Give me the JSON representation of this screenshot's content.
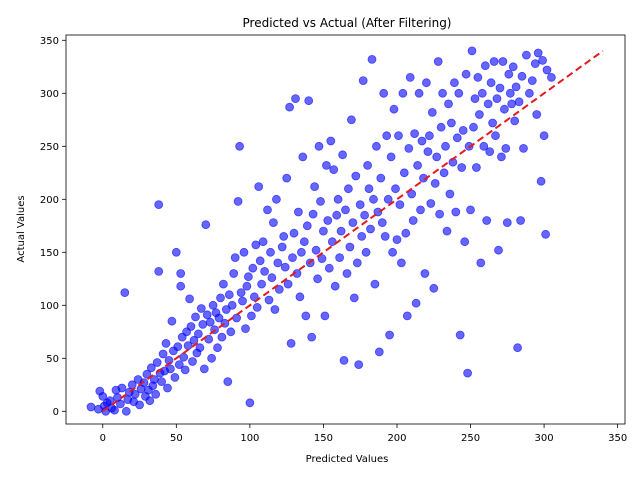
{
  "chart_data": {
    "type": "scatter",
    "title": "Predicted vs Actual (After Filtering)",
    "xlabel": "Predicted Values",
    "ylabel": "Actual Values",
    "xlim": [
      -25,
      355
    ],
    "ylim": [
      -12,
      355
    ],
    "xticks": [
      0,
      50,
      100,
      150,
      200,
      250,
      300,
      350
    ],
    "yticks": [
      0,
      50,
      100,
      150,
      200,
      250,
      300,
      350
    ],
    "grid": false,
    "legend": "none",
    "colors": {
      "points": "#0000ff",
      "reference_line": "#e41a1c"
    },
    "reference_line": {
      "style": "dashed",
      "from": [
        0,
        0
      ],
      "to": [
        340,
        340
      ]
    },
    "series": [
      {
        "points": [
          [
            -8,
            4
          ],
          [
            -3,
            2
          ],
          [
            -2,
            19
          ],
          [
            0,
            14
          ],
          [
            1,
            5
          ],
          [
            2,
            0
          ],
          [
            3,
            8
          ],
          [
            5,
            10
          ],
          [
            6,
            3
          ],
          [
            8,
            1
          ],
          [
            9,
            20
          ],
          [
            10,
            13
          ],
          [
            12,
            7
          ],
          [
            13,
            22
          ],
          [
            15,
            112
          ],
          [
            16,
            0
          ],
          [
            17,
            11
          ],
          [
            18,
            18
          ],
          [
            20,
            25
          ],
          [
            21,
            9
          ],
          [
            22,
            16
          ],
          [
            24,
            30
          ],
          [
            25,
            6
          ],
          [
            26,
            21
          ],
          [
            28,
            27
          ],
          [
            29,
            14
          ],
          [
            30,
            35
          ],
          [
            31,
            20
          ],
          [
            32,
            10
          ],
          [
            33,
            41
          ],
          [
            34,
            24
          ],
          [
            35,
            30
          ],
          [
            36,
            16
          ],
          [
            37,
            46
          ],
          [
            38,
            195
          ],
          [
            38,
            132
          ],
          [
            39,
            36
          ],
          [
            40,
            28
          ],
          [
            41,
            54
          ],
          [
            42,
            38
          ],
          [
            43,
            64
          ],
          [
            44,
            22
          ],
          [
            45,
            48
          ],
          [
            46,
            40
          ],
          [
            47,
            85
          ],
          [
            48,
            57
          ],
          [
            49,
            32
          ],
          [
            50,
            150
          ],
          [
            51,
            61
          ],
          [
            52,
            44
          ],
          [
            53,
            130
          ],
          [
            53,
            118
          ],
          [
            54,
            70
          ],
          [
            55,
            51
          ],
          [
            56,
            39
          ],
          [
            57,
            75
          ],
          [
            58,
            62
          ],
          [
            59,
            106
          ],
          [
            60,
            80
          ],
          [
            61,
            47
          ],
          [
            62,
            67
          ],
          [
            63,
            89
          ],
          [
            64,
            55
          ],
          [
            65,
            73
          ],
          [
            66,
            60
          ],
          [
            67,
            97
          ],
          [
            68,
            82
          ],
          [
            69,
            40
          ],
          [
            70,
            176
          ],
          [
            71,
            91
          ],
          [
            72,
            68
          ],
          [
            73,
            84
          ],
          [
            74,
            50
          ],
          [
            75,
            100
          ],
          [
            76,
            77
          ],
          [
            77,
            93
          ],
          [
            78,
            60
          ],
          [
            79,
            88
          ],
          [
            80,
            107
          ],
          [
            81,
            70
          ],
          [
            82,
            120
          ],
          [
            83,
            83
          ],
          [
            84,
            96
          ],
          [
            85,
            28
          ],
          [
            86,
            110
          ],
          [
            87,
            75
          ],
          [
            88,
            100
          ],
          [
            89,
            130
          ],
          [
            90,
            145
          ],
          [
            91,
            88
          ],
          [
            92,
            198
          ],
          [
            93,
            250
          ],
          [
            94,
            112
          ],
          [
            95,
            104
          ],
          [
            96,
            150
          ],
          [
            97,
            78
          ],
          [
            98,
            118
          ],
          [
            99,
            127
          ],
          [
            100,
            8
          ],
          [
            101,
            90
          ],
          [
            102,
            135
          ],
          [
            103,
            108
          ],
          [
            104,
            157
          ],
          [
            105,
            98
          ],
          [
            106,
            212
          ],
          [
            107,
            142
          ],
          [
            108,
            120
          ],
          [
            109,
            160
          ],
          [
            110,
            132
          ],
          [
            112,
            190
          ],
          [
            113,
            105
          ],
          [
            114,
            150
          ],
          [
            115,
            126
          ],
          [
            116,
            178
          ],
          [
            117,
            96
          ],
          [
            118,
            200
          ],
          [
            119,
            140
          ],
          [
            120,
            115
          ],
          [
            122,
            155
          ],
          [
            123,
            165
          ],
          [
            124,
            136
          ],
          [
            125,
            220
          ],
          [
            126,
            120
          ],
          [
            127,
            287
          ],
          [
            128,
            64
          ],
          [
            129,
            145
          ],
          [
            130,
            168
          ],
          [
            131,
            295
          ],
          [
            132,
            130
          ],
          [
            133,
            188
          ],
          [
            134,
            108
          ],
          [
            135,
            150
          ],
          [
            136,
            240
          ],
          [
            137,
            160
          ],
          [
            138,
            90
          ],
          [
            139,
            175
          ],
          [
            140,
            293
          ],
          [
            141,
            140
          ],
          [
            142,
            70
          ],
          [
            143,
            186
          ],
          [
            144,
            212
          ],
          [
            145,
            152
          ],
          [
            146,
            125
          ],
          [
            147,
            250
          ],
          [
            148,
            198
          ],
          [
            149,
            144
          ],
          [
            150,
            170
          ],
          [
            151,
            90
          ],
          [
            152,
            232
          ],
          [
            153,
            180
          ],
          [
            154,
            135
          ],
          [
            155,
            255
          ],
          [
            156,
            160
          ],
          [
            157,
            228
          ],
          [
            158,
            118
          ],
          [
            159,
            185
          ],
          [
            160,
            200
          ],
          [
            161,
            145
          ],
          [
            162,
            170
          ],
          [
            163,
            242
          ],
          [
            164,
            48
          ],
          [
            165,
            190
          ],
          [
            166,
            130
          ],
          [
            167,
            210
          ],
          [
            168,
            155
          ],
          [
            169,
            275
          ],
          [
            170,
            178
          ],
          [
            171,
            107
          ],
          [
            172,
            222
          ],
          [
            173,
            140
          ],
          [
            174,
            44
          ],
          [
            175,
            195
          ],
          [
            176,
            165
          ],
          [
            177,
            312
          ],
          [
            178,
            185
          ],
          [
            179,
            150
          ],
          [
            180,
            232
          ],
          [
            181,
            210
          ],
          [
            182,
            172
          ],
          [
            183,
            332
          ],
          [
            184,
            200
          ],
          [
            185,
            120
          ],
          [
            186,
            250
          ],
          [
            187,
            188
          ],
          [
            188,
            56
          ],
          [
            189,
            220
          ],
          [
            190,
            178
          ],
          [
            191,
            300
          ],
          [
            192,
            165
          ],
          [
            193,
            260
          ],
          [
            194,
            200
          ],
          [
            195,
            72
          ],
          [
            196,
            240
          ],
          [
            197,
            150
          ],
          [
            198,
            285
          ],
          [
            199,
            210
          ],
          [
            200,
            162
          ],
          [
            201,
            260
          ],
          [
            202,
            195
          ],
          [
            203,
            140
          ],
          [
            204,
            300
          ],
          [
            205,
            225
          ],
          [
            206,
            168
          ],
          [
            207,
            90
          ],
          [
            208,
            248
          ],
          [
            209,
            315
          ],
          [
            210,
            205
          ],
          [
            211,
            180
          ],
          [
            212,
            262
          ],
          [
            213,
            102
          ],
          [
            214,
            232
          ],
          [
            215,
            300
          ],
          [
            216,
            190
          ],
          [
            217,
            255
          ],
          [
            218,
            220
          ],
          [
            219,
            130
          ],
          [
            220,
            310
          ],
          [
            221,
            245
          ],
          [
            222,
            260
          ],
          [
            223,
            196
          ],
          [
            224,
            282
          ],
          [
            225,
            116
          ],
          [
            226,
            215
          ],
          [
            227,
            240
          ],
          [
            228,
            330
          ],
          [
            229,
            186
          ],
          [
            230,
            268
          ],
          [
            231,
            300
          ],
          [
            232,
            225
          ],
          [
            233,
            250
          ],
          [
            234,
            170
          ],
          [
            235,
            290
          ],
          [
            236,
            205
          ],
          [
            237,
            272
          ],
          [
            238,
            235
          ],
          [
            239,
            310
          ],
          [
            240,
            188
          ],
          [
            241,
            258
          ],
          [
            242,
            300
          ],
          [
            243,
            72
          ],
          [
            244,
            230
          ],
          [
            245,
            265
          ],
          [
            246,
            160
          ],
          [
            247,
            318
          ],
          [
            248,
            36
          ],
          [
            249,
            250
          ],
          [
            250,
            190
          ],
          [
            251,
            340
          ],
          [
            252,
            268
          ],
          [
            253,
            295
          ],
          [
            254,
            230
          ],
          [
            255,
            315
          ],
          [
            256,
            280
          ],
          [
            257,
            140
          ],
          [
            258,
            300
          ],
          [
            259,
            250
          ],
          [
            260,
            326
          ],
          [
            261,
            180
          ],
          [
            262,
            290
          ],
          [
            263,
            245
          ],
          [
            264,
            310
          ],
          [
            265,
            272
          ],
          [
            266,
            330
          ],
          [
            267,
            260
          ],
          [
            268,
            295
          ],
          [
            269,
            152
          ],
          [
            270,
            305
          ],
          [
            271,
            240
          ],
          [
            272,
            330
          ],
          [
            273,
            285
          ],
          [
            274,
            248
          ],
          [
            275,
            178
          ],
          [
            276,
            318
          ],
          [
            277,
            300
          ],
          [
            278,
            290
          ],
          [
            279,
            325
          ],
          [
            280,
            274
          ],
          [
            281,
            306
          ],
          [
            282,
            60
          ],
          [
            283,
            292
          ],
          [
            284,
            180
          ],
          [
            285,
            316
          ],
          [
            286,
            248
          ],
          [
            288,
            336
          ],
          [
            290,
            300
          ],
          [
            292,
            312
          ],
          [
            294,
            328
          ],
          [
            295,
            280
          ],
          [
            296,
            338
          ],
          [
            298,
            217
          ],
          [
            299,
            331
          ],
          [
            300,
            260
          ],
          [
            301,
            167
          ],
          [
            302,
            322
          ],
          [
            305,
            315
          ]
        ]
      }
    ]
  }
}
